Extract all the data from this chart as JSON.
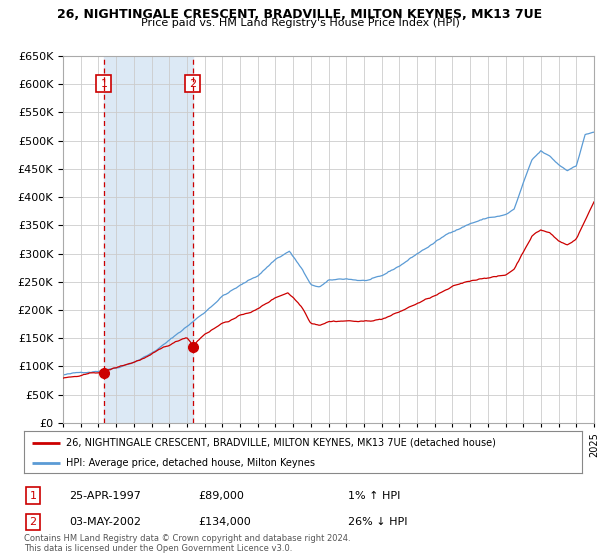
{
  "title1": "26, NIGHTINGALE CRESCENT, BRADVILLE, MILTON KEYNES, MK13 7UE",
  "title2": "Price paid vs. HM Land Registry's House Price Index (HPI)",
  "legend1": "26, NIGHTINGALE CRESCENT, BRADVILLE, MILTON KEYNES, MK13 7UE (detached house)",
  "legend2": "HPI: Average price, detached house, Milton Keynes",
  "footnote": "Contains HM Land Registry data © Crown copyright and database right 2024.\nThis data is licensed under the Open Government Licence v3.0.",
  "sale1_date": "25-APR-1997",
  "sale1_price": 89000,
  "sale1_hpi": "1% ↑ HPI",
  "sale2_date": "03-MAY-2002",
  "sale2_price": 134000,
  "sale2_hpi": "26% ↓ HPI",
  "sale1_year": 1997.31,
  "sale2_year": 2002.34,
  "xmin": 1995,
  "xmax": 2025,
  "ymin": 0,
  "ymax": 650000,
  "red_color": "#cc0000",
  "blue_color": "#5b9bd5",
  "shade_color": "#dce9f5",
  "bg_color": "#ffffff",
  "grid_color": "#cccccc"
}
